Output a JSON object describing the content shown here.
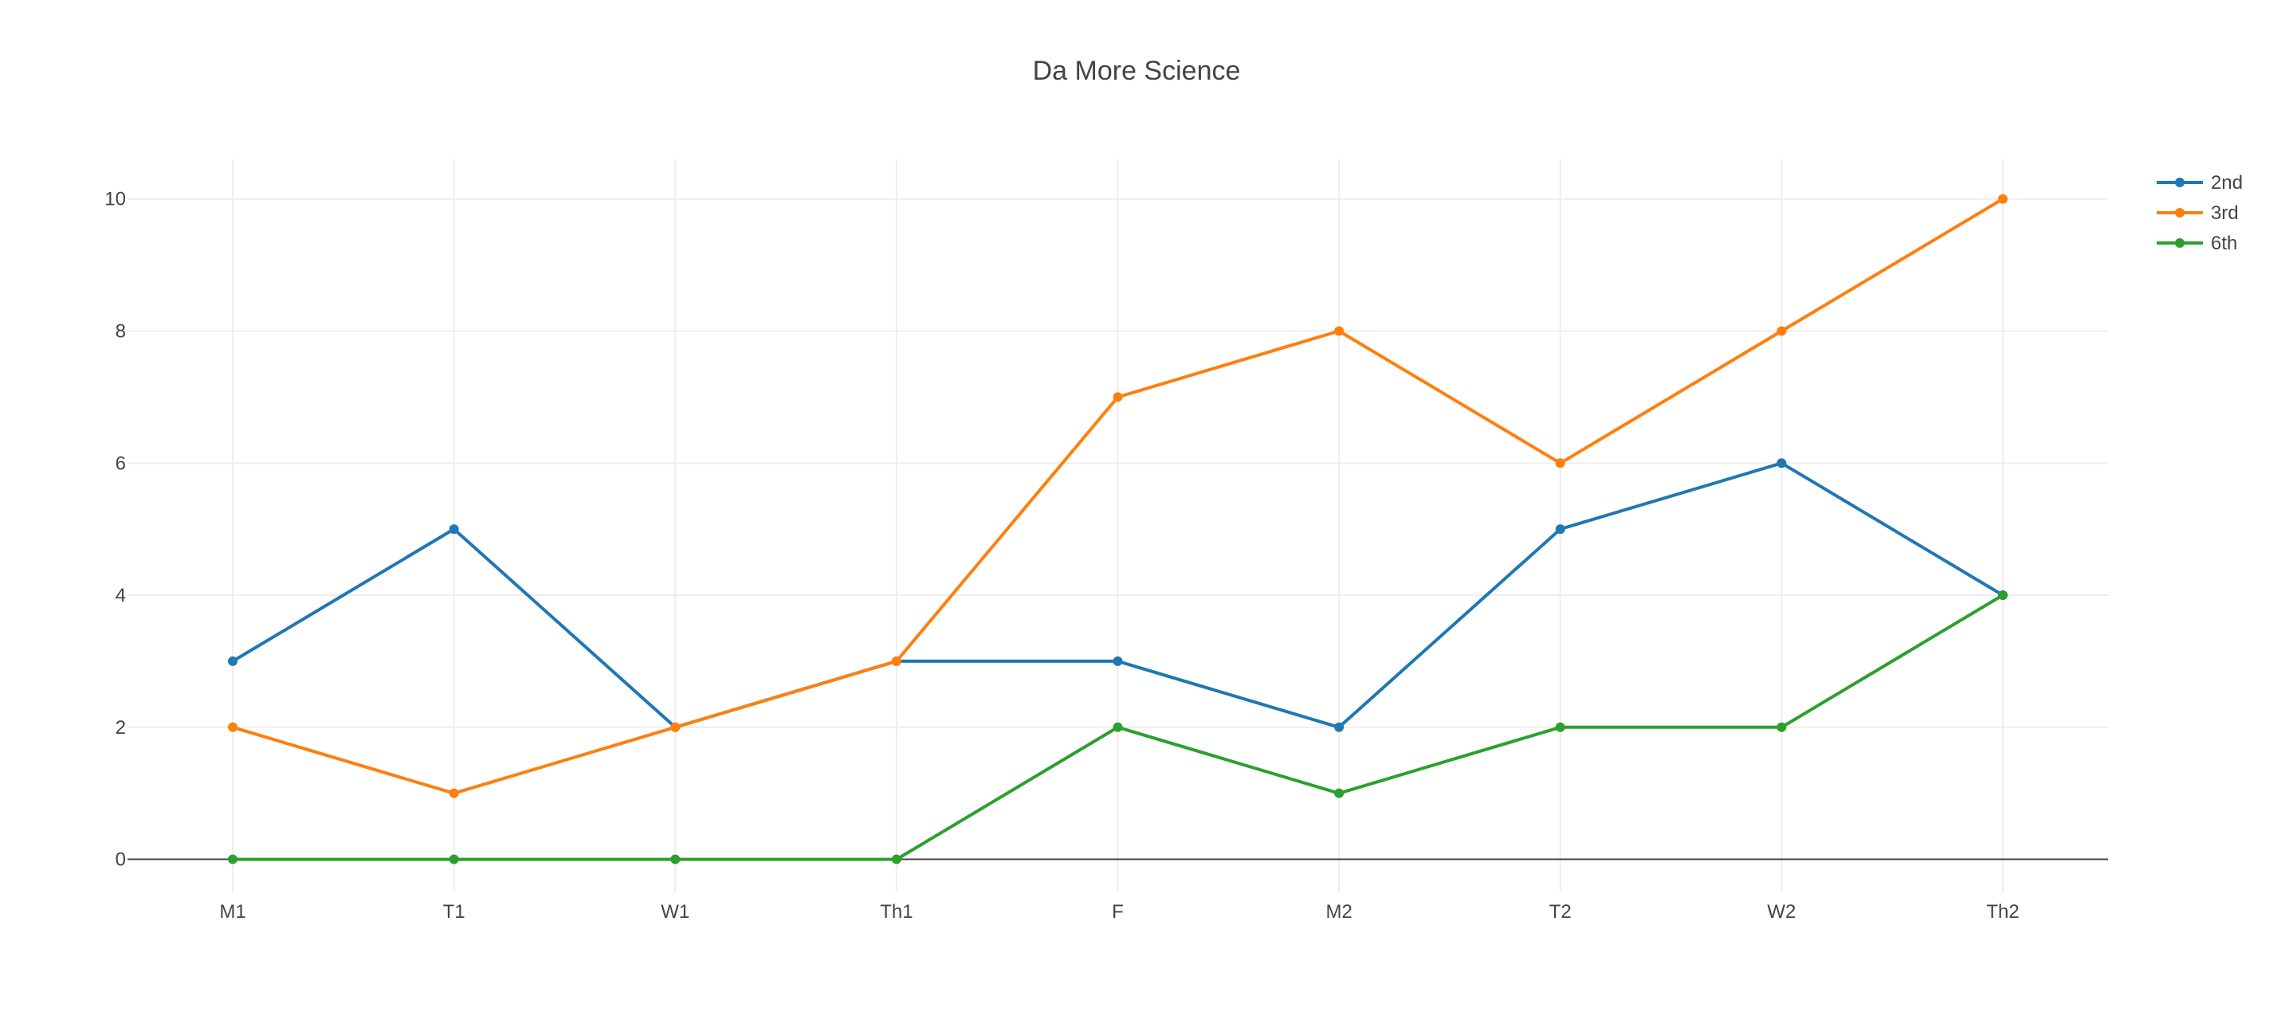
{
  "chart_data": {
    "type": "line",
    "title": "Da More Science",
    "xlabel": "",
    "ylabel": "",
    "categories": [
      "M1",
      "T1",
      "W1",
      "Th1",
      "F",
      "M2",
      "T2",
      "W2",
      "Th2"
    ],
    "ylim": [
      -0.5,
      10.6
    ],
    "yticks": [
      0,
      2,
      4,
      6,
      8,
      10
    ],
    "grid": true,
    "legend_position": "top-right",
    "series": [
      {
        "name": "2nd",
        "color": "#1f77b4",
        "values": [
          3,
          5,
          2,
          3,
          3,
          2,
          5,
          6,
          4
        ]
      },
      {
        "name": "3rd",
        "color": "#ff7f0e",
        "values": [
          2,
          1,
          2,
          3,
          7,
          8,
          6,
          8,
          10
        ]
      },
      {
        "name": "6th",
        "color": "#2ca02c",
        "values": [
          0,
          0,
          0,
          0,
          2,
          1,
          2,
          2,
          4
        ]
      }
    ]
  }
}
